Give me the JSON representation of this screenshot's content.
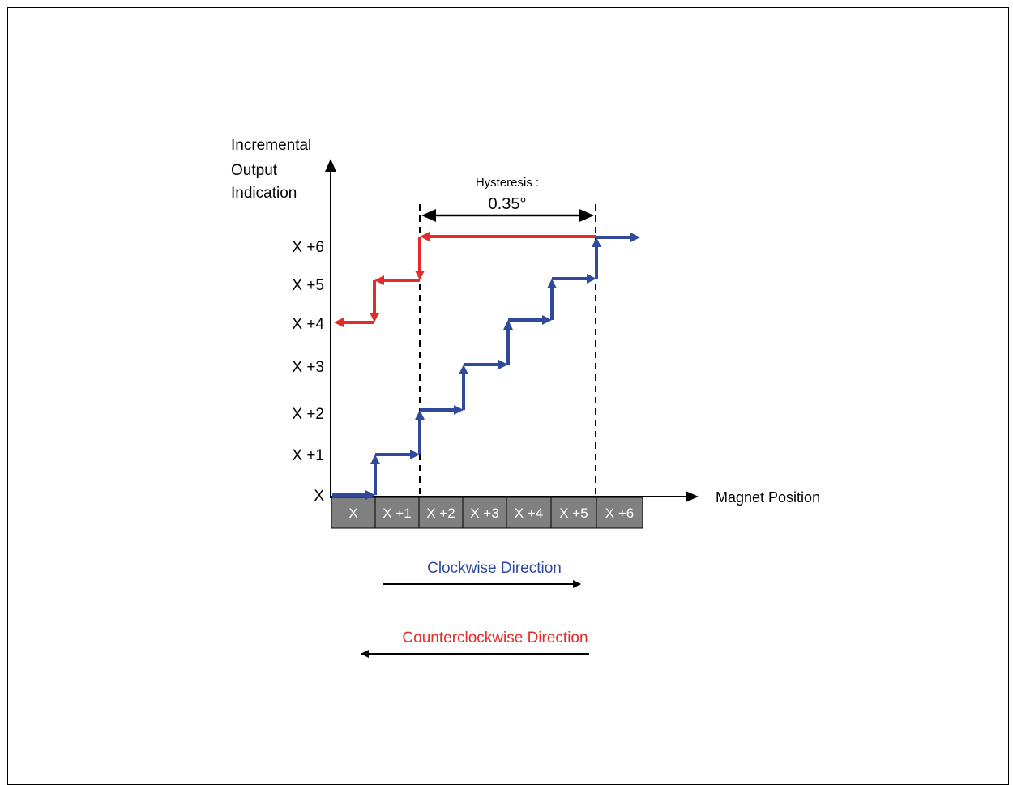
{
  "y_axis_label_lines": [
    "Incremental",
    "Output",
    "Indication"
  ],
  "x_axis_label": "Magnet Position",
  "y_ticks": [
    "X",
    "X +1",
    "X +2",
    "X +3",
    "X +4",
    "X +5",
    "X +6"
  ],
  "position_cells": [
    "X",
    "X +1",
    "X +2",
    "X +3",
    "X +4",
    "X +5",
    "X +6"
  ],
  "hysteresis": {
    "label": "Hysteresis :",
    "value": "0.35°"
  },
  "clockwise": {
    "label": "Clockwise Direction",
    "color": "#2f4a9c"
  },
  "counterclockwise": {
    "label": "Counterclockwise Direction",
    "color": "#e42a2a"
  },
  "cell_fill": "#808080"
}
